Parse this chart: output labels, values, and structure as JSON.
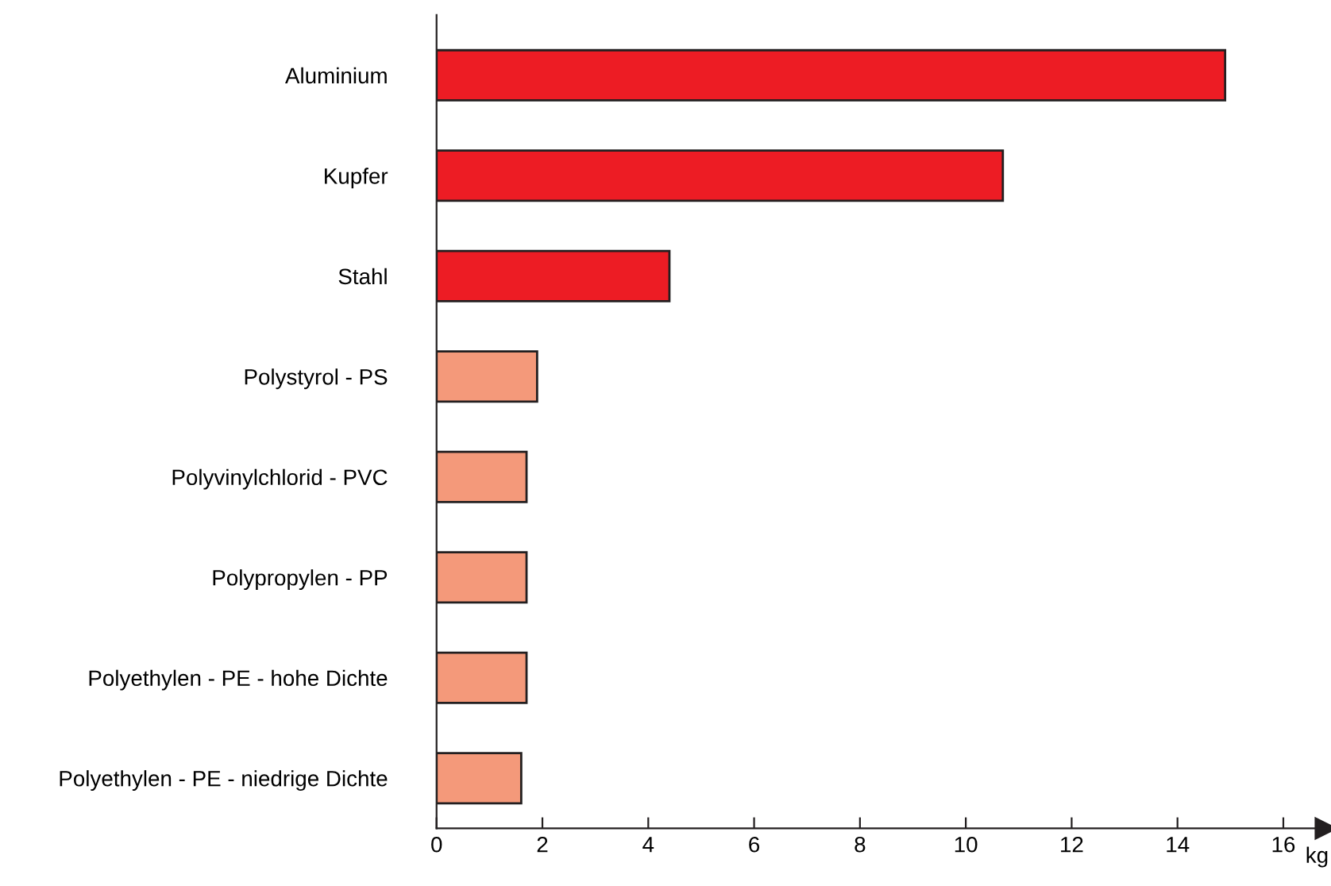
{
  "chart_data": {
    "type": "bar",
    "orientation": "horizontal",
    "xlabel": "kg",
    "categories": [
      "Aluminium",
      "Kupfer",
      "Stahl",
      "Polystyrol - PS",
      "Polyvinylchlorid - PVC",
      "Polypropylen - PP",
      "Polyethylen - PE - hohe Dichte",
      "Polyethylen - PE - niedrige Dichte"
    ],
    "values": [
      14.9,
      10.7,
      4.4,
      1.9,
      1.7,
      1.7,
      1.7,
      1.6
    ],
    "colors": [
      "#ed1c24",
      "#ed1c24",
      "#ed1c24",
      "#f4997a",
      "#f4997a",
      "#f4997a",
      "#f4997a",
      "#f4997a"
    ],
    "xlim": [
      0,
      16.8
    ],
    "xticks": [
      0,
      2,
      4,
      6,
      8,
      10,
      12,
      14,
      16
    ],
    "grid": false
  }
}
